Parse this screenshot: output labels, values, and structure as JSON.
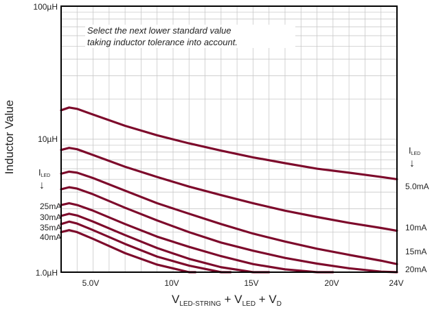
{
  "chart_data": {
    "type": "line",
    "title": "",
    "xlabel_parts": [
      "V",
      "LED-STRING",
      " + V",
      "LED",
      " + V",
      "D"
    ],
    "ylabel": "Inductor Value",
    "y_scale": "log",
    "ylim": [
      "1.0µH",
      "100µH"
    ],
    "y_ticks": [
      "1.0µH",
      "10µH",
      "100µH"
    ],
    "x_ticks": [
      "5.0V",
      "10V",
      "15V",
      "20V",
      "24V"
    ],
    "xlim": [
      3,
      24
    ],
    "grid": true,
    "annotation": [
      "Select the next lower standard value",
      "taking inductor tolerance into account."
    ],
    "series_label_header": "I",
    "series_label_sub": "LED",
    "arrow_glyph": "↓",
    "series": [
      {
        "name": "5.0mA",
        "side": "right",
        "x": [
          3,
          3.5,
          4,
          5,
          7,
          9,
          11,
          13,
          15,
          17,
          19,
          21,
          23,
          24
        ],
        "y": [
          16.5,
          17.3,
          16.9,
          15.3,
          12.6,
          10.7,
          9.3,
          8.2,
          7.3,
          6.6,
          6.0,
          5.6,
          5.2,
          5.0
        ]
      },
      {
        "name": "10mA",
        "side": "right",
        "x": [
          3,
          3.5,
          4,
          5,
          7,
          9,
          11,
          13,
          15,
          17,
          19,
          21,
          23,
          24
        ],
        "y": [
          8.3,
          8.6,
          8.4,
          7.6,
          6.2,
          5.2,
          4.4,
          3.8,
          3.3,
          2.9,
          2.6,
          2.35,
          2.15,
          2.05
        ]
      },
      {
        "name": "15mA",
        "side": "right",
        "x": [
          3,
          3.5,
          4,
          5,
          7,
          9,
          11,
          13,
          15,
          17,
          19,
          21,
          23,
          24
        ],
        "y": [
          5.5,
          5.7,
          5.6,
          5.1,
          4.1,
          3.3,
          2.75,
          2.3,
          1.95,
          1.7,
          1.5,
          1.35,
          1.22,
          1.15
        ]
      },
      {
        "name": "20mA",
        "side": "right",
        "x": [
          3,
          3.5,
          4,
          5,
          7,
          9,
          11,
          13,
          15,
          17,
          19,
          21,
          23,
          24
        ],
        "y": [
          4.2,
          4.35,
          4.25,
          3.85,
          3.05,
          2.45,
          2.0,
          1.67,
          1.45,
          1.28,
          1.16,
          1.07,
          1.01,
          0.98
        ]
      },
      {
        "name": "25mA",
        "side": "left",
        "x": [
          3,
          3.5,
          4,
          5,
          7,
          9,
          11,
          13,
          15,
          17,
          19,
          20
        ],
        "y": [
          3.2,
          3.3,
          3.2,
          2.9,
          2.3,
          1.85,
          1.55,
          1.32,
          1.15,
          1.05,
          0.99,
          0.97
        ]
      },
      {
        "name": "30mA",
        "side": "left",
        "x": [
          3,
          3.5,
          4,
          5,
          7,
          9,
          11,
          13,
          15,
          16
        ],
        "y": [
          2.65,
          2.75,
          2.67,
          2.4,
          1.9,
          1.52,
          1.26,
          1.09,
          1.0,
          0.97
        ]
      },
      {
        "name": "35mA",
        "side": "left",
        "x": [
          3,
          3.5,
          4,
          5,
          7,
          9,
          11,
          13,
          13.6
        ],
        "y": [
          2.3,
          2.4,
          2.32,
          2.07,
          1.63,
          1.31,
          1.12,
          1.0,
          0.97
        ]
      },
      {
        "name": "40mA",
        "side": "left",
        "x": [
          3,
          3.5,
          4,
          5,
          7,
          9,
          11,
          11.4
        ],
        "y": [
          2.0,
          2.07,
          2.0,
          1.78,
          1.39,
          1.14,
          0.99,
          0.97
        ]
      }
    ],
    "line_color": "#7d0a2b",
    "grid_color": "#c8c8c8",
    "frame_color": "#000000"
  }
}
